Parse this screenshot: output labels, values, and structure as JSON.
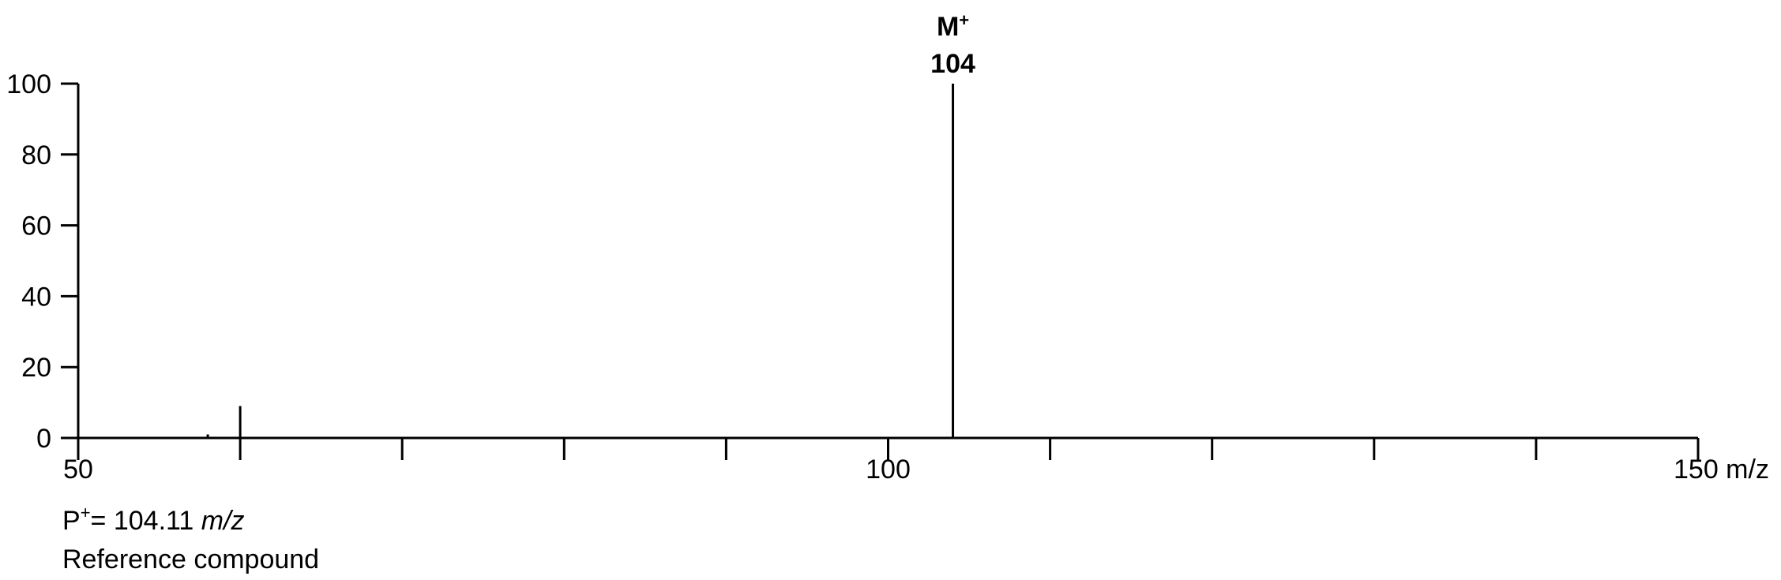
{
  "chart_data": {
    "type": "bar",
    "title": "",
    "xlabel": "m/z",
    "ylabel": "",
    "xlim": [
      50,
      150
    ],
    "ylim": [
      0,
      100
    ],
    "x_tick_labels": [
      "50",
      "100",
      "150"
    ],
    "y_tick_labels": [
      "0",
      "20",
      "40",
      "60",
      "80",
      "100"
    ],
    "peaks": [
      {
        "mz": 58,
        "intensity": 1
      },
      {
        "mz": 60,
        "intensity": 9
      },
      {
        "mz": 104,
        "intensity": 100
      }
    ],
    "annotations": [
      {
        "mz": 104,
        "line1": "M",
        "line1_sup": "+",
        "line2": "104"
      }
    ]
  },
  "caption": {
    "line1_prefix": "P",
    "line1_sup": "+",
    "line1_value": "= 104.11 ",
    "line1_unit": "m/z",
    "line2": "Reference compound"
  }
}
